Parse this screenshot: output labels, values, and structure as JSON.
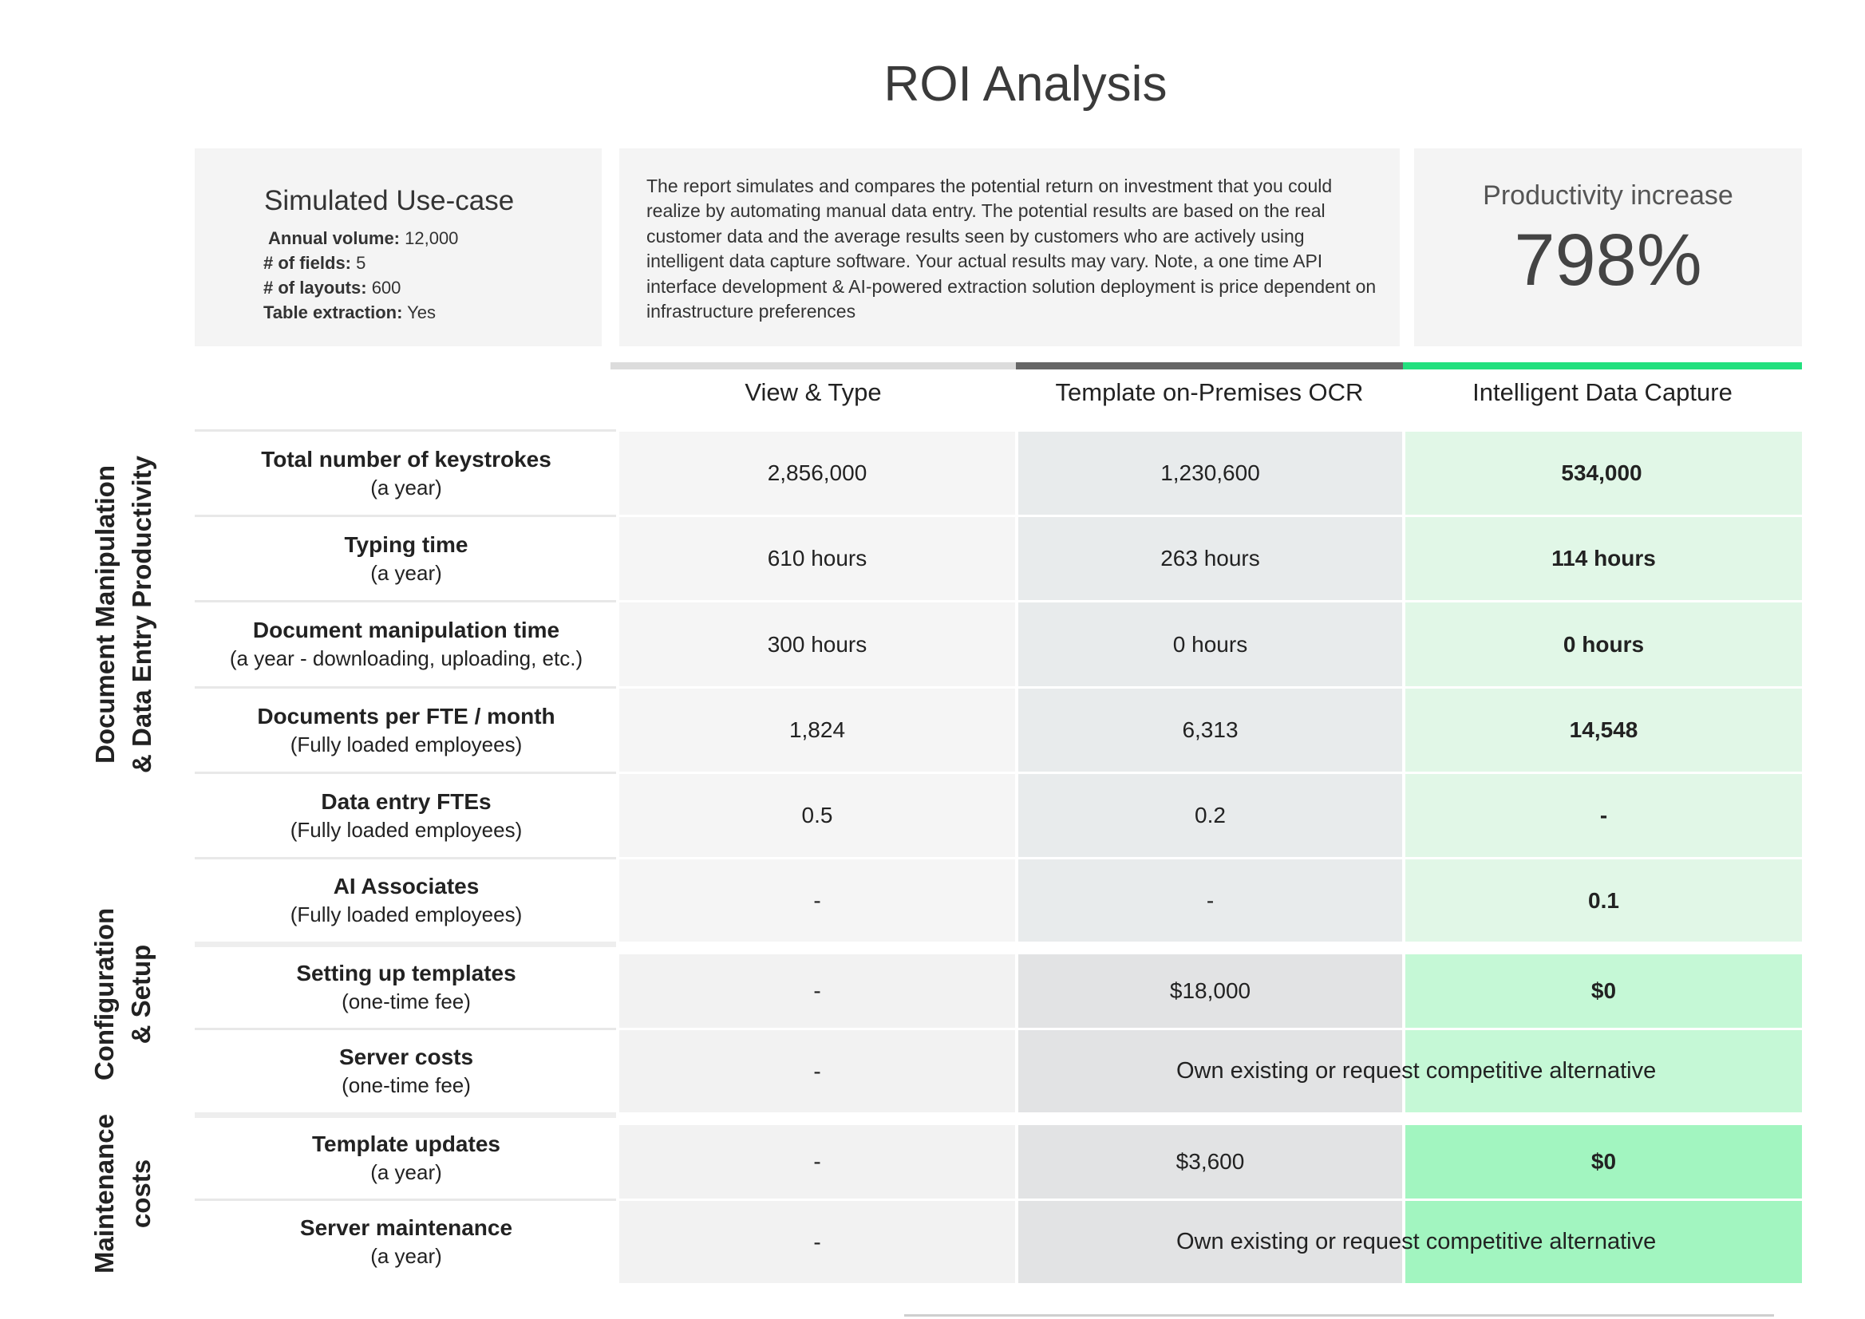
{
  "title": "ROI Analysis",
  "use_case": {
    "heading": "Simulated Use-case",
    "items": [
      {
        "label": "Annual volume:",
        "value": " 12,000"
      },
      {
        "label": "# of fields:",
        "value": " 5"
      },
      {
        "label": "# of layouts:",
        "value": " 600"
      },
      {
        "label": "Table extraction:",
        "value": " Yes"
      }
    ]
  },
  "description": "The report simulates and compares the potential return on investment that you could realize by automating manual data entry. The potential results are based on the real customer data and the average results seen by customers who are actively using intelligent data capture software. Your actual results may vary. Note, a one time API interface development & AI-powered extraction solution deployment is price dependent on infrastructure preferences",
  "productivity": {
    "label": "Productivity increase",
    "value": "798%"
  },
  "columns": [
    "View & Type",
    "Template on-Premises OCR",
    "Intelligent Data Capture"
  ],
  "colors": {
    "col1": "#f5f5f5",
    "col2": "#e8ebec",
    "col3_light": "#e1f7e7",
    "col2_config": "#e2e3e4",
    "col3_config": "#c5f8d6",
    "col3_maint": "#a2f5c0",
    "accent_green": "#22e07e",
    "bar_gray": "#666666",
    "bar_light": "#dcdcdc"
  },
  "sections": [
    {
      "label_lines": [
        "Document Manipulation",
        "& Data Entry Productivity"
      ]
    },
    {
      "label_lines": [
        "Configuration",
        "& Setup"
      ]
    },
    {
      "label_lines": [
        "Maintenance",
        "costs"
      ]
    }
  ],
  "rows": [
    {
      "title": "Total number of keystrokes",
      "sub": "(a year)",
      "values": [
        "2,856,000",
        "1,230,600",
        "534,000"
      ]
    },
    {
      "title": "Typing time",
      "sub": "(a year)",
      "values": [
        "610 hours",
        "263 hours",
        "114 hours"
      ]
    },
    {
      "title": "Document manipulation time",
      "sub": "(a year - downloading, uploading, etc.)",
      "values": [
        "300 hours",
        "0 hours",
        "0 hours"
      ]
    },
    {
      "title": "Documents per FTE / month",
      "sub": "(Fully loaded employees)",
      "values": [
        "1,824",
        "6,313",
        "14,548"
      ]
    },
    {
      "title": "Data entry FTEs",
      "sub": "(Fully loaded employees)",
      "values": [
        "0.5",
        "0.2",
        "-"
      ]
    },
    {
      "title": "AI Associates",
      "sub": "(Fully loaded employees)",
      "values": [
        "-",
        "-",
        "0.1"
      ]
    },
    {
      "title": "Setting up templates",
      "sub": "(one-time fee)",
      "values": [
        "-",
        "$18,000",
        "$0"
      ]
    },
    {
      "title": "Server costs",
      "sub": "(one-time fee)",
      "values": [
        "-",
        "Own existing or request competitive alternative"
      ]
    },
    {
      "title": "Template updates",
      "sub": "(a year)",
      "values": [
        "-",
        "$3,600",
        "$0"
      ]
    },
    {
      "title": "Server maintenance",
      "sub": "(a year)",
      "values": [
        "-",
        "Own existing or request competitive alternative"
      ]
    }
  ]
}
